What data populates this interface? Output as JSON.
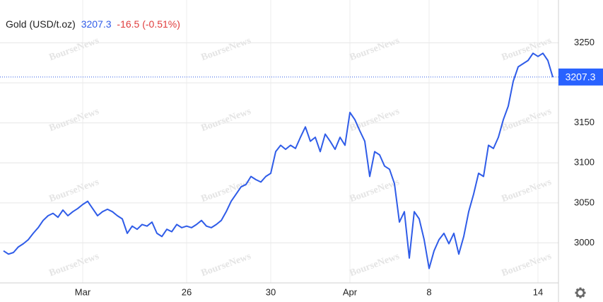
{
  "chart_data": {
    "type": "line",
    "title": "Gold (USD/t.oz)",
    "last_price": 3207.3,
    "change": "-16.5 (-0.51%)",
    "watermark": "BourseNews",
    "categories": [
      null,
      null,
      null,
      null,
      null,
      null,
      null,
      null,
      null,
      null,
      null,
      null,
      null,
      null,
      null,
      null,
      "Mar",
      null,
      null,
      null,
      null,
      null,
      null,
      null,
      null,
      null,
      null,
      null,
      null,
      null,
      null,
      null,
      null,
      null,
      null,
      null,
      null,
      "26",
      null,
      null,
      null,
      null,
      null,
      null,
      null,
      null,
      null,
      null,
      null,
      null,
      null,
      null,
      null,
      null,
      "30",
      null,
      null,
      null,
      null,
      null,
      null,
      null,
      null,
      null,
      null,
      null,
      null,
      null,
      null,
      null,
      "Apr",
      null,
      null,
      null,
      null,
      null,
      null,
      null,
      null,
      null,
      null,
      null,
      null,
      null,
      null,
      null,
      "8",
      null,
      null,
      null,
      null,
      null,
      null,
      null,
      null,
      null,
      null,
      null,
      null,
      null,
      null,
      null,
      null,
      null,
      null,
      null,
      null,
      null,
      "14",
      null,
      null,
      null
    ],
    "series": [
      {
        "name": "Gold",
        "color": "#2f5ce8",
        "values": [
          2990,
          2986,
          2988,
          2995,
          2999,
          3004,
          3012,
          3019,
          3028,
          3034,
          3037,
          3032,
          3041,
          3034,
          3039,
          3043,
          3048,
          3052,
          3043,
          3034,
          3039,
          3042,
          3039,
          3034,
          3030,
          3012,
          3021,
          3017,
          3023,
          3021,
          3026,
          3012,
          3008,
          3017,
          3014,
          3023,
          3019,
          3021,
          3019,
          3023,
          3028,
          3021,
          3019,
          3023,
          3028,
          3039,
          3052,
          3061,
          3070,
          3073,
          3083,
          3079,
          3076,
          3083,
          3087,
          3114,
          3122,
          3117,
          3122,
          3118,
          3132,
          3145,
          3127,
          3132,
          3114,
          3136,
          3127,
          3117,
          3132,
          3122,
          3163,
          3154,
          3140,
          3127,
          3083,
          3114,
          3110,
          3096,
          3092,
          3074,
          3026,
          3039,
          2981,
          3039,
          3030,
          3004,
          2968,
          2990,
          3004,
          3012,
          2999,
          3012,
          2986,
          3008,
          3039,
          3061,
          3087,
          3083,
          3122,
          3118,
          3132,
          3154,
          3171,
          3202,
          3220,
          3224,
          3228,
          3237,
          3233,
          3237,
          3228,
          3207
        ]
      }
    ],
    "ylim": [
      2950,
      3300
    ],
    "yticks": [
      3000,
      3050,
      3100,
      3150,
      3200,
      3250
    ],
    "grid": true
  }
}
